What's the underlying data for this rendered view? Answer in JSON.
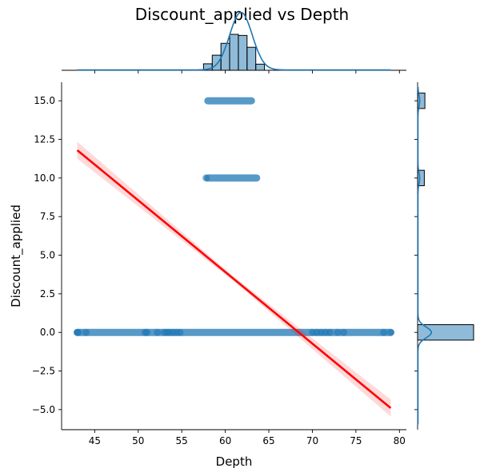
{
  "chart_data": {
    "type": "scatter",
    "title": "Discount_applied vs Depth",
    "xlabel": "Depth",
    "ylabel": "Discount_applied",
    "xlim": [
      41.2,
      80.8
    ],
    "ylim": [
      -6.3,
      16.2
    ],
    "x_ticks": [
      45,
      50,
      55,
      60,
      65,
      70,
      75,
      80
    ],
    "y_ticks": [
      -5.0,
      -2.5,
      0.0,
      2.5,
      5.0,
      7.5,
      10.0,
      12.5,
      15.0
    ],
    "x_tick_labels": [
      "45",
      "50",
      "55",
      "60",
      "65",
      "70",
      "75",
      "80"
    ],
    "y_tick_labels": [
      "−5.0",
      "−2.5",
      "0.0",
      "2.5",
      "5.0",
      "7.5",
      "10.0",
      "12.5",
      "15.0"
    ],
    "point_color": "#1f77b4",
    "regression_color": "#ff0000",
    "scatter_bands": [
      {
        "y": 15.0,
        "x_min": 58.0,
        "x_max": 63.0
      },
      {
        "y": 10.0,
        "x_min": 58.0,
        "x_max": 63.6
      },
      {
        "y": 0.0,
        "x_min": 43.0,
        "x_max": 79.0
      }
    ],
    "outlier_points": [
      {
        "x": 43.0,
        "y": 0.0
      },
      {
        "x": 43.1,
        "y": 0.0
      },
      {
        "x": 44.0,
        "y": 0.0
      },
      {
        "x": 50.8,
        "y": 0.0
      },
      {
        "x": 51.0,
        "y": 0.0
      },
      {
        "x": 52.2,
        "y": 0.0
      },
      {
        "x": 53.0,
        "y": 0.0
      },
      {
        "x": 53.3,
        "y": 0.0
      },
      {
        "x": 53.6,
        "y": 0.0
      },
      {
        "x": 54.0,
        "y": 0.0
      },
      {
        "x": 54.4,
        "y": 0.0
      },
      {
        "x": 54.8,
        "y": 0.0
      },
      {
        "x": 70.0,
        "y": 0.0
      },
      {
        "x": 70.5,
        "y": 0.0
      },
      {
        "x": 71.0,
        "y": 0.0
      },
      {
        "x": 71.5,
        "y": 0.0
      },
      {
        "x": 72.0,
        "y": 0.0
      },
      {
        "x": 72.9,
        "y": 0.0
      },
      {
        "x": 73.6,
        "y": 0.0
      },
      {
        "x": 78.2,
        "y": 0.0
      },
      {
        "x": 79.0,
        "y": 0.0
      },
      {
        "x": 57.8,
        "y": 10.0
      }
    ],
    "regression": {
      "x_start": 43.0,
      "y_start": 11.8,
      "x_end": 79.0,
      "y_end": -4.9,
      "ci_start": 0.55,
      "ci_mid": 0.15,
      "ci_end": 0.55
    },
    "top_marginal": {
      "bins": [
        {
          "x0": 57.5,
          "x1": 58.5,
          "count": 0.18
        },
        {
          "x0": 58.5,
          "x1": 59.5,
          "count": 0.42
        },
        {
          "x0": 59.5,
          "x1": 60.5,
          "count": 0.75
        },
        {
          "x0": 60.5,
          "x1": 61.5,
          "count": 1.0
        },
        {
          "x0": 61.5,
          "x1": 62.5,
          "count": 0.97
        },
        {
          "x0": 62.5,
          "x1": 63.5,
          "count": 0.64
        },
        {
          "x0": 63.5,
          "x1": 64.5,
          "count": 0.17
        }
      ],
      "kde_mean": 61.8,
      "kde_sd": 1.3
    },
    "right_marginal": {
      "bins": [
        {
          "y0": 14.5,
          "y1": 15.5,
          "count": 0.13
        },
        {
          "y0": 9.5,
          "y1": 10.5,
          "count": 0.12
        },
        {
          "y0": -0.5,
          "y1": 0.5,
          "count": 1.0
        }
      ],
      "kde_peaks": [
        {
          "y": 15.0,
          "height": 0.03
        },
        {
          "y": 10.0,
          "height": 0.03
        },
        {
          "y": 0.0,
          "height": 0.24
        }
      ]
    }
  }
}
